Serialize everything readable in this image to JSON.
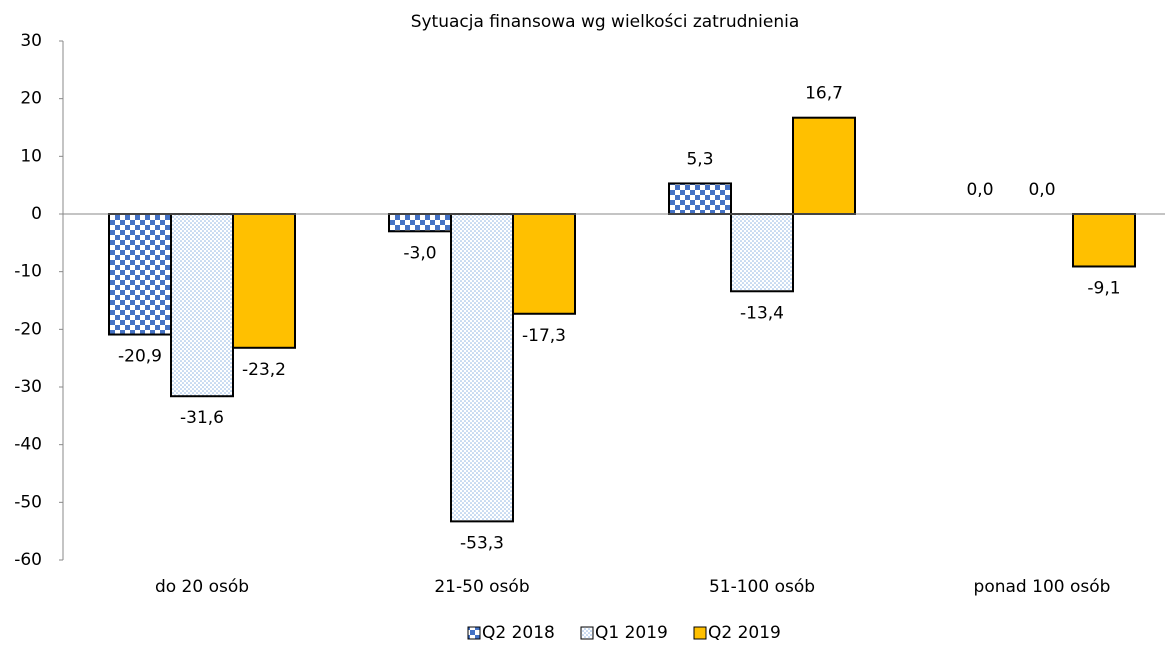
{
  "chart_data": {
    "type": "bar",
    "title": "Sytuacja finansowa wg wielkości zatrudnienia",
    "categories": [
      "do 20 osób",
      "21-50 osób",
      "51-100 osób",
      "ponad 100 osób"
    ],
    "series": [
      {
        "name": "Q2 2018",
        "color": "#4472c4",
        "fill_pattern": "checker",
        "values": [
          -20.9,
          -3.0,
          5.3,
          0.0
        ],
        "value_labels": [
          "-20,9",
          "-3,0",
          "5,3",
          "0,0"
        ]
      },
      {
        "name": "Q1 2019",
        "color": "#8eb4e3",
        "fill_pattern": "dots",
        "values": [
          -31.6,
          -53.3,
          -13.4,
          0.0
        ],
        "value_labels": [
          "-31,6",
          "-53,3",
          "-13,4",
          "0,0"
        ]
      },
      {
        "name": "Q2 2019",
        "color": "#ffc000",
        "fill_pattern": "solid",
        "values": [
          -23.2,
          -17.3,
          16.7,
          -9.1
        ],
        "value_labels": [
          "-23,2",
          "-17,3",
          "16,7",
          "-9,1"
        ]
      }
    ],
    "ylim": [
      -60,
      30
    ],
    "yticks": [
      -60,
      -50,
      -40,
      -30,
      -20,
      -10,
      0,
      10,
      20,
      30
    ],
    "grid": false,
    "legend": "bottom"
  }
}
